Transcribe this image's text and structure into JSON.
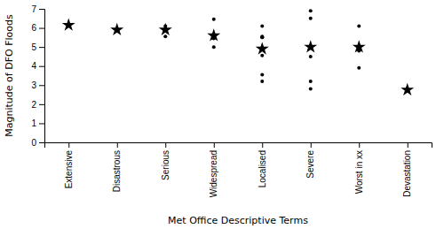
{
  "chart_data": {
    "type": "scatter",
    "xlabel": "Met Office Descriptive Terms",
    "ylabel": "Magnitude of DFO Floods",
    "categories": [
      "Extensive",
      "Disastrous",
      "Serious",
      "Widespread",
      "Localised",
      "Severe",
      "Worst in xx",
      "Devastation"
    ],
    "series": [
      {
        "marker": "dot",
        "color": "#000000",
        "values": [
          [
            6.15
          ],
          [
            5.9
          ],
          [
            5.9,
            5.55,
            6.1
          ],
          [
            6.45,
            5.45,
            5.0,
            5.6,
            5.55
          ],
          [
            6.1,
            5.55,
            5.5,
            5.5,
            4.9,
            4.55,
            3.55,
            3.2
          ],
          [
            6.9,
            6.5,
            4.5,
            3.2,
            2.8,
            5.0,
            5.0
          ],
          [
            6.1,
            3.9,
            4.8
          ],
          [
            2.75
          ]
        ]
      },
      {
        "marker": "star",
        "color": "#000000",
        "values": [
          6.15,
          5.9,
          5.9,
          5.6,
          4.9,
          5.0,
          5.0,
          2.75
        ]
      }
    ],
    "ylim": [
      0,
      7
    ],
    "yticks": [
      0,
      1,
      2,
      3,
      4,
      5,
      6,
      7
    ],
    "grid": false
  }
}
